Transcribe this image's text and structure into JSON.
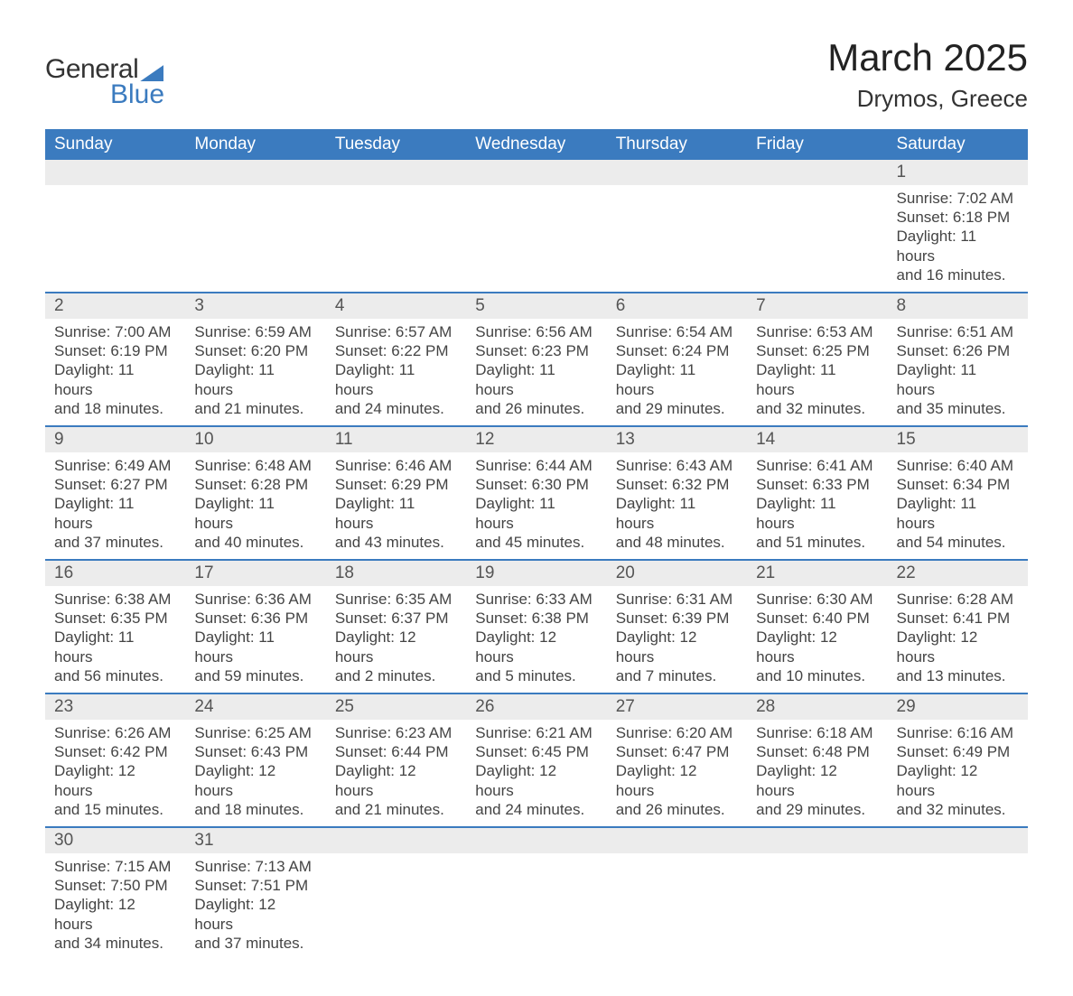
{
  "brand": {
    "text_general": "General",
    "text_blue": "Blue",
    "accent_color": "#3b7bbf"
  },
  "title": {
    "month": "March 2025",
    "location": "Drymos, Greece"
  },
  "colors": {
    "header_bg": "#3b7bbf",
    "header_text": "#ffffff",
    "daynum_bg": "#ececec",
    "row_divider": "#3b7bbf",
    "body_text": "#444444",
    "background": "#ffffff"
  },
  "typography": {
    "month_title_size": 42,
    "location_size": 26,
    "header_font_size": 19,
    "cell_font_size": 17
  },
  "weekdays": [
    "Sunday",
    "Monday",
    "Tuesday",
    "Wednesday",
    "Thursday",
    "Friday",
    "Saturday"
  ],
  "weeks": [
    [
      null,
      null,
      null,
      null,
      null,
      null,
      {
        "n": "1",
        "sr": "Sunrise: 7:02 AM",
        "ss": "Sunset: 6:18 PM",
        "d1": "Daylight: 11 hours",
        "d2": "and 16 minutes."
      }
    ],
    [
      {
        "n": "2",
        "sr": "Sunrise: 7:00 AM",
        "ss": "Sunset: 6:19 PM",
        "d1": "Daylight: 11 hours",
        "d2": "and 18 minutes."
      },
      {
        "n": "3",
        "sr": "Sunrise: 6:59 AM",
        "ss": "Sunset: 6:20 PM",
        "d1": "Daylight: 11 hours",
        "d2": "and 21 minutes."
      },
      {
        "n": "4",
        "sr": "Sunrise: 6:57 AM",
        "ss": "Sunset: 6:22 PM",
        "d1": "Daylight: 11 hours",
        "d2": "and 24 minutes."
      },
      {
        "n": "5",
        "sr": "Sunrise: 6:56 AM",
        "ss": "Sunset: 6:23 PM",
        "d1": "Daylight: 11 hours",
        "d2": "and 26 minutes."
      },
      {
        "n": "6",
        "sr": "Sunrise: 6:54 AM",
        "ss": "Sunset: 6:24 PM",
        "d1": "Daylight: 11 hours",
        "d2": "and 29 minutes."
      },
      {
        "n": "7",
        "sr": "Sunrise: 6:53 AM",
        "ss": "Sunset: 6:25 PM",
        "d1": "Daylight: 11 hours",
        "d2": "and 32 minutes."
      },
      {
        "n": "8",
        "sr": "Sunrise: 6:51 AM",
        "ss": "Sunset: 6:26 PM",
        "d1": "Daylight: 11 hours",
        "d2": "and 35 minutes."
      }
    ],
    [
      {
        "n": "9",
        "sr": "Sunrise: 6:49 AM",
        "ss": "Sunset: 6:27 PM",
        "d1": "Daylight: 11 hours",
        "d2": "and 37 minutes."
      },
      {
        "n": "10",
        "sr": "Sunrise: 6:48 AM",
        "ss": "Sunset: 6:28 PM",
        "d1": "Daylight: 11 hours",
        "d2": "and 40 minutes."
      },
      {
        "n": "11",
        "sr": "Sunrise: 6:46 AM",
        "ss": "Sunset: 6:29 PM",
        "d1": "Daylight: 11 hours",
        "d2": "and 43 minutes."
      },
      {
        "n": "12",
        "sr": "Sunrise: 6:44 AM",
        "ss": "Sunset: 6:30 PM",
        "d1": "Daylight: 11 hours",
        "d2": "and 45 minutes."
      },
      {
        "n": "13",
        "sr": "Sunrise: 6:43 AM",
        "ss": "Sunset: 6:32 PM",
        "d1": "Daylight: 11 hours",
        "d2": "and 48 minutes."
      },
      {
        "n": "14",
        "sr": "Sunrise: 6:41 AM",
        "ss": "Sunset: 6:33 PM",
        "d1": "Daylight: 11 hours",
        "d2": "and 51 minutes."
      },
      {
        "n": "15",
        "sr": "Sunrise: 6:40 AM",
        "ss": "Sunset: 6:34 PM",
        "d1": "Daylight: 11 hours",
        "d2": "and 54 minutes."
      }
    ],
    [
      {
        "n": "16",
        "sr": "Sunrise: 6:38 AM",
        "ss": "Sunset: 6:35 PM",
        "d1": "Daylight: 11 hours",
        "d2": "and 56 minutes."
      },
      {
        "n": "17",
        "sr": "Sunrise: 6:36 AM",
        "ss": "Sunset: 6:36 PM",
        "d1": "Daylight: 11 hours",
        "d2": "and 59 minutes."
      },
      {
        "n": "18",
        "sr": "Sunrise: 6:35 AM",
        "ss": "Sunset: 6:37 PM",
        "d1": "Daylight: 12 hours",
        "d2": "and 2 minutes."
      },
      {
        "n": "19",
        "sr": "Sunrise: 6:33 AM",
        "ss": "Sunset: 6:38 PM",
        "d1": "Daylight: 12 hours",
        "d2": "and 5 minutes."
      },
      {
        "n": "20",
        "sr": "Sunrise: 6:31 AM",
        "ss": "Sunset: 6:39 PM",
        "d1": "Daylight: 12 hours",
        "d2": "and 7 minutes."
      },
      {
        "n": "21",
        "sr": "Sunrise: 6:30 AM",
        "ss": "Sunset: 6:40 PM",
        "d1": "Daylight: 12 hours",
        "d2": "and 10 minutes."
      },
      {
        "n": "22",
        "sr": "Sunrise: 6:28 AM",
        "ss": "Sunset: 6:41 PM",
        "d1": "Daylight: 12 hours",
        "d2": "and 13 minutes."
      }
    ],
    [
      {
        "n": "23",
        "sr": "Sunrise: 6:26 AM",
        "ss": "Sunset: 6:42 PM",
        "d1": "Daylight: 12 hours",
        "d2": "and 15 minutes."
      },
      {
        "n": "24",
        "sr": "Sunrise: 6:25 AM",
        "ss": "Sunset: 6:43 PM",
        "d1": "Daylight: 12 hours",
        "d2": "and 18 minutes."
      },
      {
        "n": "25",
        "sr": "Sunrise: 6:23 AM",
        "ss": "Sunset: 6:44 PM",
        "d1": "Daylight: 12 hours",
        "d2": "and 21 minutes."
      },
      {
        "n": "26",
        "sr": "Sunrise: 6:21 AM",
        "ss": "Sunset: 6:45 PM",
        "d1": "Daylight: 12 hours",
        "d2": "and 24 minutes."
      },
      {
        "n": "27",
        "sr": "Sunrise: 6:20 AM",
        "ss": "Sunset: 6:47 PM",
        "d1": "Daylight: 12 hours",
        "d2": "and 26 minutes."
      },
      {
        "n": "28",
        "sr": "Sunrise: 6:18 AM",
        "ss": "Sunset: 6:48 PM",
        "d1": "Daylight: 12 hours",
        "d2": "and 29 minutes."
      },
      {
        "n": "29",
        "sr": "Sunrise: 6:16 AM",
        "ss": "Sunset: 6:49 PM",
        "d1": "Daylight: 12 hours",
        "d2": "and 32 minutes."
      }
    ],
    [
      {
        "n": "30",
        "sr": "Sunrise: 7:15 AM",
        "ss": "Sunset: 7:50 PM",
        "d1": "Daylight: 12 hours",
        "d2": "and 34 minutes."
      },
      {
        "n": "31",
        "sr": "Sunrise: 7:13 AM",
        "ss": "Sunset: 7:51 PM",
        "d1": "Daylight: 12 hours",
        "d2": "and 37 minutes."
      },
      null,
      null,
      null,
      null,
      null
    ]
  ]
}
